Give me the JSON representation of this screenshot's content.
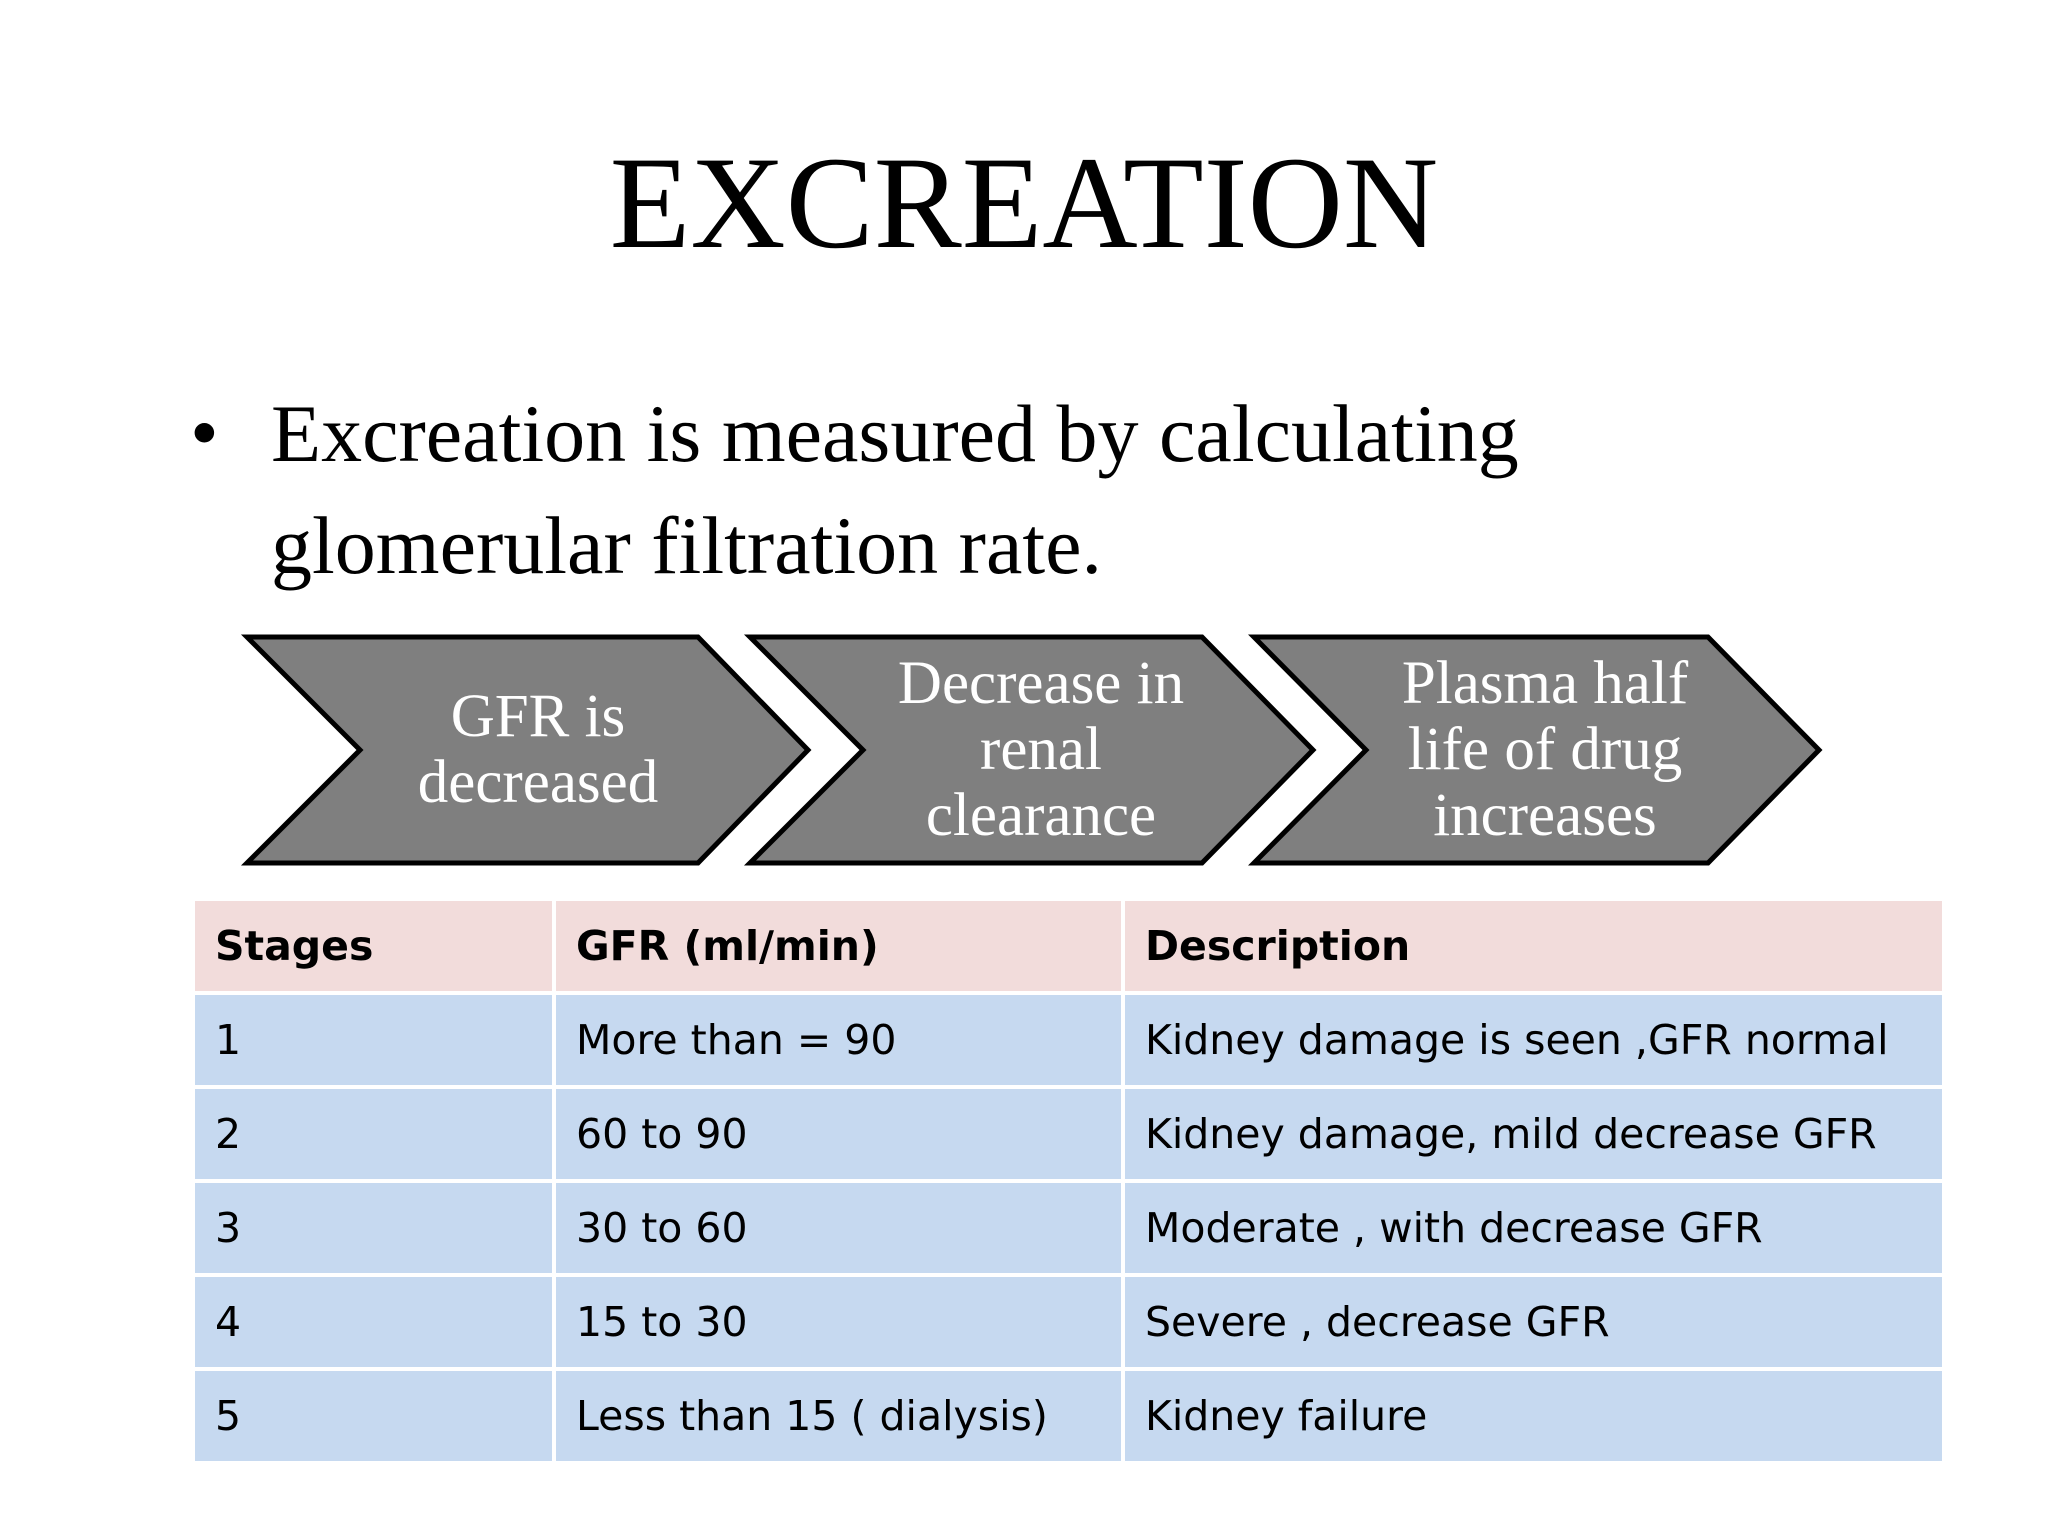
{
  "header": {
    "title": "EXCREATION"
  },
  "bullet": "Excreation is measured by calculating glomerular filtration rate.",
  "process": [
    "GFR is decreased",
    "Decrease in renal clearance",
    "Plasma half life of drug increases"
  ],
  "table": {
    "headers": [
      "Stages",
      "GFR (ml/min)",
      "Description"
    ],
    "rows": [
      [
        "1",
        "More than = 90",
        "Kidney damage is seen ,GFR normal"
      ],
      [
        "2",
        "60 to 90",
        "Kidney damage, mild decrease GFR"
      ],
      [
        "3",
        "30 to 60",
        "Moderate , with decrease GFR"
      ],
      [
        "4",
        "15 to 30",
        "Severe , decrease GFR"
      ],
      [
        "5",
        "Less than 15 ( dialysis)",
        "Kidney failure"
      ]
    ]
  }
}
